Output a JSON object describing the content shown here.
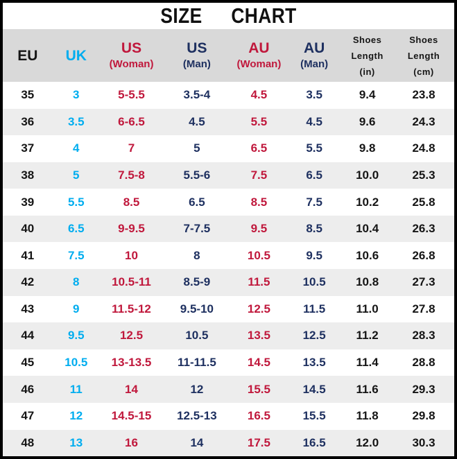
{
  "title": "SIZE CHART",
  "colors": {
    "black_text": "#151515",
    "cyan": "#00ADEF",
    "red": "#C0183C",
    "navy": "#1E3060",
    "header_bg": "#D9D9D9",
    "stripe_bg": "#EDEDED",
    "row_bg": "#FFFFFF",
    "frame_border": "#000000"
  },
  "columns": [
    {
      "key": "eu",
      "lines": [
        "EU"
      ],
      "color_key": "black_text"
    },
    {
      "key": "uk",
      "lines": [
        "UK"
      ],
      "color_key": "cyan"
    },
    {
      "key": "us-woman",
      "lines": [
        "US",
        "(Woman)"
      ],
      "color_key": "red"
    },
    {
      "key": "us-man",
      "lines": [
        "US",
        "(Man)"
      ],
      "color_key": "navy"
    },
    {
      "key": "au-woman",
      "lines": [
        "AU",
        "(Woman)"
      ],
      "color_key": "red"
    },
    {
      "key": "au-man",
      "lines": [
        "AU",
        "(Man)"
      ],
      "color_key": "navy"
    },
    {
      "key": "length-in",
      "lines": [
        "Shoes",
        "Length",
        "(in)"
      ],
      "color_key": "black_text"
    },
    {
      "key": "length-cm",
      "lines": [
        "Shoes",
        "Length",
        "(cm)"
      ],
      "color_key": "black_text"
    }
  ],
  "chart_data": {
    "type": "table",
    "title": "SIZE CHART",
    "columns": [
      "EU",
      "UK",
      "US (Woman)",
      "US (Man)",
      "AU (Woman)",
      "AU (Man)",
      "Shoes Length (in)",
      "Shoes Length (cm)"
    ],
    "rows": [
      [
        "35",
        "3",
        "5-5.5",
        "3.5-4",
        "4.5",
        "3.5",
        "9.4",
        "23.8"
      ],
      [
        "36",
        "3.5",
        "6-6.5",
        "4.5",
        "5.5",
        "4.5",
        "9.6",
        "24.3"
      ],
      [
        "37",
        "4",
        "7",
        "5",
        "6.5",
        "5.5",
        "9.8",
        "24.8"
      ],
      [
        "38",
        "5",
        "7.5-8",
        "5.5-6",
        "7.5",
        "6.5",
        "10.0",
        "25.3"
      ],
      [
        "39",
        "5.5",
        "8.5",
        "6.5",
        "8.5",
        "7.5",
        "10.2",
        "25.8"
      ],
      [
        "40",
        "6.5",
        "9-9.5",
        "7-7.5",
        "9.5",
        "8.5",
        "10.4",
        "26.3"
      ],
      [
        "41",
        "7.5",
        "10",
        "8",
        "10.5",
        "9.5",
        "10.6",
        "26.8"
      ],
      [
        "42",
        "8",
        "10.5-11",
        "8.5-9",
        "11.5",
        "10.5",
        "10.8",
        "27.3"
      ],
      [
        "43",
        "9",
        "11.5-12",
        "9.5-10",
        "12.5",
        "11.5",
        "11.0",
        "27.8"
      ],
      [
        "44",
        "9.5",
        "12.5",
        "10.5",
        "13.5",
        "12.5",
        "11.2",
        "28.3"
      ],
      [
        "45",
        "10.5",
        "13-13.5",
        "11-11.5",
        "14.5",
        "13.5",
        "11.4",
        "28.8"
      ],
      [
        "46",
        "11",
        "14",
        "12",
        "15.5",
        "14.5",
        "11.6",
        "29.3"
      ],
      [
        "47",
        "12",
        "14.5-15",
        "12.5-13",
        "16.5",
        "15.5",
        "11.8",
        "29.8"
      ],
      [
        "48",
        "13",
        "16",
        "14",
        "17.5",
        "16.5",
        "12.0",
        "30.3"
      ]
    ]
  }
}
